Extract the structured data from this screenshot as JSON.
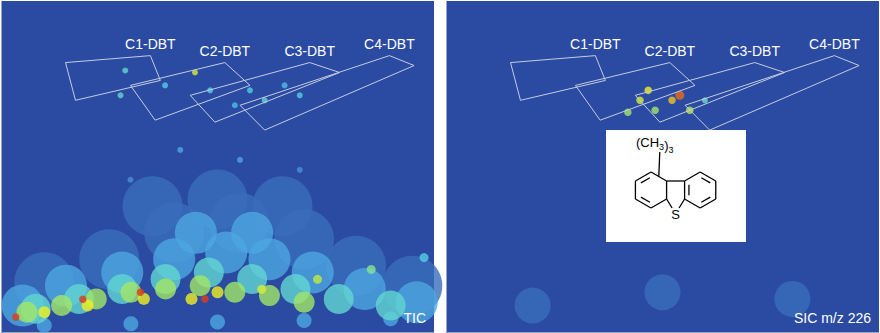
{
  "chart_data": [
    {
      "type": "scatter",
      "title": "TIC",
      "xlim": [
        0,
        100
      ],
      "ylim": [
        0,
        100
      ],
      "tick_labels": false,
      "grid": false,
      "color_range": [
        0,
        10
      ],
      "regions": [
        {
          "label": "C1-DBT",
          "x": [
            14.9,
            34.5,
            36.8,
            17.2
          ],
          "y": [
            81.4,
            83.5,
            76,
            70
          ]
        },
        {
          "label": "C2-DBT",
          "x": [
            29.9,
            51.7,
            57.5,
            35.6
          ],
          "y": [
            74.5,
            81.4,
            74.5,
            64
          ]
        },
        {
          "label": "C3-DBT",
          "x": [
            43.7,
            71.3,
            78.2,
            49.4
          ],
          "y": [
            71.5,
            81.4,
            78.4,
            63.4
          ]
        },
        {
          "label": "C4-DBT",
          "x": [
            55.2,
            89.7,
            95.4,
            60.9
          ],
          "y": [
            68.5,
            83.5,
            80.5,
            61
          ]
        }
      ],
      "points": {
        "x": [
          10,
          25,
          40,
          55,
          70,
          82,
          95,
          50,
          35,
          65,
          5,
          15,
          28,
          40,
          52,
          62,
          72,
          84,
          96,
          45,
          58,
          10,
          30,
          50,
          70,
          90,
          8,
          18,
          28,
          38,
          48,
          58,
          68,
          78,
          90,
          6,
          14,
          22,
          30,
          38,
          46,
          54,
          62,
          70,
          10,
          20,
          33,
          44,
          50,
          60.2,
          73.1,
          85.5,
          97.7,
          3.4,
          18.9,
          32.2,
          47.1,
          28.7,
          27.6,
          44.8,
          37.9,
          48.3,
          57.5,
          60.9,
          65.5,
          69,
          54,
          41.4,
          55.2,
          69,
          29.9
        ],
        "y": [
          15,
          22,
          30,
          33,
          28,
          20,
          14,
          40,
          38,
          38,
          8,
          14,
          18,
          22,
          24,
          22,
          18,
          13,
          9,
          30,
          30,
          2,
          2.5,
          3,
          3.5,
          4,
          7,
          10,
          13,
          16,
          18,
          16,
          13,
          10,
          8,
          6,
          8,
          10,
          12,
          13,
          14,
          12,
          11,
          9,
          6,
          8,
          10,
          10,
          12,
          12.9,
          15.9,
          18.9,
          22.5,
          4.5,
          9.9,
          12,
          10,
          79,
          71.5,
          78.4,
          74.5,
          73,
          73,
          70,
          74.5,
          71.5,
          68.5,
          55,
          52,
          49,
          46
        ],
        "size": [
          20,
          20,
          20,
          20,
          20,
          20,
          20,
          20,
          20,
          20,
          14,
          14,
          14,
          14,
          14,
          14,
          14,
          14,
          14,
          14,
          14,
          5,
          5,
          5,
          5,
          5,
          10,
          10,
          10,
          10,
          10,
          10,
          10,
          10,
          10,
          7,
          7,
          7,
          7,
          7,
          7,
          7,
          7,
          7,
          4,
          4,
          4,
          4,
          4,
          3,
          3,
          3,
          3,
          2.5,
          2.5,
          2.5,
          2.5,
          2,
          2,
          2,
          2,
          2,
          2,
          2,
          2,
          2,
          2,
          2,
          2,
          2,
          2
        ],
        "values": [
          1.5,
          1.5,
          1.5,
          1.5,
          1.5,
          1.5,
          1.5,
          1.5,
          1.5,
          1.5,
          3,
          3,
          3,
          3,
          3,
          3,
          3,
          3,
          3,
          3,
          3,
          3,
          3,
          3,
          3,
          3,
          4.5,
          4.5,
          4.5,
          4.5,
          4.5,
          4.5,
          4.5,
          4.5,
          4.5,
          6,
          6,
          6,
          6,
          6,
          6,
          6,
          6,
          6,
          7.5,
          7.5,
          7.5,
          7.5,
          7.5,
          7,
          6.5,
          5.5,
          4,
          9.5,
          9.5,
          9.5,
          9.5,
          4.5,
          4.5,
          7,
          4,
          4,
          4,
          4.5,
          3.5,
          4,
          3.5,
          3,
          3,
          2.5,
          2.5
        ]
      }
    },
    {
      "type": "scatter",
      "title": "SIC m/z 226",
      "xlim": [
        0,
        100
      ],
      "ylim": [
        0,
        100
      ],
      "tick_labels": false,
      "grid": false,
      "color_range": [
        0,
        10
      ],
      "regions": [
        {
          "label": "C1-DBT",
          "x": [
            14.9,
            34.5,
            36.8,
            17.2
          ],
          "y": [
            81.4,
            83.5,
            76,
            70
          ]
        },
        {
          "label": "C2-DBT",
          "x": [
            29.9,
            51.7,
            57.5,
            35.6
          ],
          "y": [
            74.5,
            81.4,
            74.5,
            64
          ]
        },
        {
          "label": "C3-DBT",
          "x": [
            43.7,
            71.3,
            78.2,
            49.4
          ],
          "y": [
            71.5,
            81.4,
            78.4,
            63.4
          ]
        },
        {
          "label": "C4-DBT",
          "x": [
            55.2,
            89.7,
            95.4,
            60.9
          ],
          "y": [
            68.5,
            83.5,
            80.5,
            61
          ]
        }
      ],
      "points": {
        "x": [
          20,
          50,
          80,
          42,
          44.8,
          46.7,
          48.3,
          52.2,
          54,
          56.3,
          59.8
        ],
        "y": [
          8,
          12,
          10,
          66.4,
          70,
          73,
          67,
          70,
          71.5,
          67,
          70
        ],
        "size": [
          12,
          12,
          12,
          2.5,
          2.5,
          2.5,
          2.5,
          2.5,
          3,
          2.5,
          2
        ],
        "values": [
          1.5,
          1.5,
          1.5,
          6,
          7,
          7.5,
          6,
          8,
          9,
          6.5,
          5
        ]
      },
      "inset": {
        "substituent": "(CH3)3",
        "heteroatom": "S"
      }
    }
  ]
}
